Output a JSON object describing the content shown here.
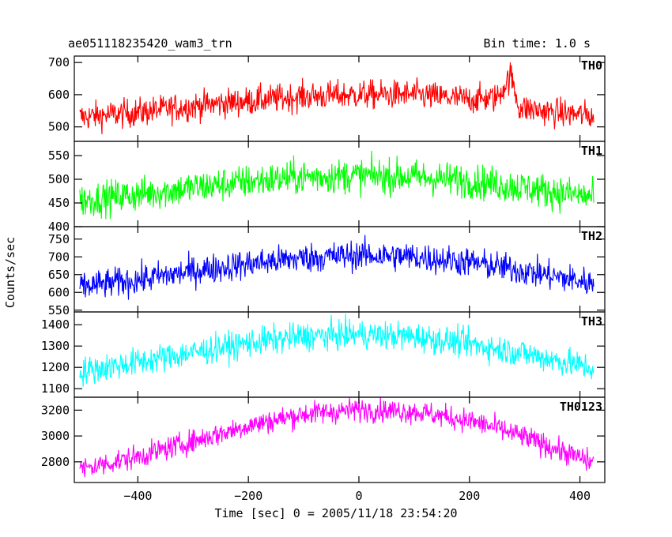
{
  "chart_data": {
    "type": "line",
    "title": "ae051118235420_wam3_trn",
    "bin_time": "Bin time: 1.0 s",
    "xlabel": "Time [sec] 0 = 2005/11/18 23:54:20",
    "ylabel": "Counts/sec",
    "xlim": [
      -515,
      445
    ],
    "x_start": -505,
    "x_end": 425,
    "x_ticks": [
      -400,
      -200,
      0,
      200,
      400
    ],
    "x_tick_labels": [
      "−400",
      "−200",
      "0",
      "200",
      "400"
    ],
    "grid": false,
    "panels": [
      {
        "name": "TH0",
        "color": "#ff0000",
        "ylim": [
          455,
          720
        ],
        "y_ticks": [
          500,
          600,
          700
        ],
        "y_tick_labels": [
          "500",
          "600",
          "700"
        ],
        "trend": [
          [
            -505,
            530
          ],
          [
            -400,
            545
          ],
          [
            -300,
            565
          ],
          [
            -200,
            580
          ],
          [
            -100,
            595
          ],
          [
            0,
            600
          ],
          [
            100,
            600
          ],
          [
            200,
            585
          ],
          [
            250,
            590
          ],
          [
            275,
            660
          ],
          [
            290,
            560
          ],
          [
            350,
            545
          ],
          [
            425,
            535
          ]
        ],
        "noise_amplitude": 32
      },
      {
        "name": "TH1",
        "color": "#00ff00",
        "ylim": [
          400,
          580
        ],
        "y_ticks": [
          400,
          450,
          500,
          550
        ],
        "y_tick_labels": [
          "400",
          "450",
          "500",
          "550"
        ],
        "trend": [
          [
            -505,
            455
          ],
          [
            -400,
            468
          ],
          [
            -300,
            482
          ],
          [
            -200,
            495
          ],
          [
            -100,
            505
          ],
          [
            0,
            508
          ],
          [
            100,
            505
          ],
          [
            200,
            497
          ],
          [
            300,
            482
          ],
          [
            425,
            462
          ]
        ],
        "noise_amplitude": 26
      },
      {
        "name": "TH2",
        "color": "#0000ff",
        "ylim": [
          545,
          785
        ],
        "y_ticks": [
          550,
          600,
          650,
          700,
          750
        ],
        "y_tick_labels": [
          "550",
          "600",
          "650",
          "700",
          "750"
        ],
        "trend": [
          [
            -505,
            615
          ],
          [
            -400,
            635
          ],
          [
            -300,
            660
          ],
          [
            -200,
            680
          ],
          [
            -100,
            697
          ],
          [
            0,
            705
          ],
          [
            100,
            700
          ],
          [
            200,
            685
          ],
          [
            300,
            660
          ],
          [
            425,
            625
          ]
        ],
        "noise_amplitude": 30
      },
      {
        "name": "TH3",
        "color": "#00ffff",
        "ylim": [
          1060,
          1460
        ],
        "y_ticks": [
          1100,
          1200,
          1300,
          1400
        ],
        "y_tick_labels": [
          "1100",
          "1200",
          "1300",
          "1400"
        ],
        "trend": [
          [
            -505,
            1180
          ],
          [
            -400,
            1225
          ],
          [
            -300,
            1270
          ],
          [
            -200,
            1315
          ],
          [
            -100,
            1345
          ],
          [
            0,
            1355
          ],
          [
            100,
            1345
          ],
          [
            200,
            1310
          ],
          [
            300,
            1265
          ],
          [
            425,
            1195
          ]
        ],
        "noise_amplitude": 48
      },
      {
        "name": "TH0123",
        "color": "#ff00ff",
        "ylim": [
          2640,
          3300
        ],
        "y_ticks": [
          2800,
          3000,
          3200
        ],
        "y_tick_labels": [
          "2800",
          "3000",
          "3200"
        ],
        "trend": [
          [
            -505,
            2740
          ],
          [
            -400,
            2840
          ],
          [
            -300,
            2960
          ],
          [
            -200,
            3080
          ],
          [
            -100,
            3170
          ],
          [
            0,
            3205
          ],
          [
            100,
            3190
          ],
          [
            200,
            3120
          ],
          [
            250,
            3060
          ],
          [
            300,
            2990
          ],
          [
            425,
            2790
          ]
        ],
        "noise_amplitude": 65
      }
    ]
  }
}
